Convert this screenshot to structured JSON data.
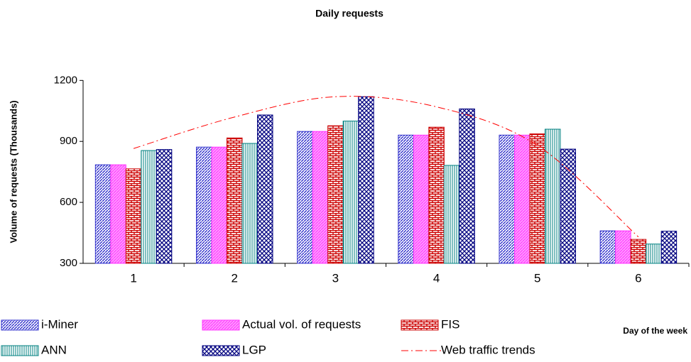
{
  "chart_data": {
    "type": "bar",
    "title": "Daily requests",
    "x_label": "Day of the week",
    "y_label": "Volume of requests (Thousands)",
    "categories": [
      "1",
      "2",
      "3",
      "4",
      "5",
      "6"
    ],
    "series": [
      {
        "name": "i-Miner",
        "color": "#3333cc",
        "values": [
          785,
          872,
          949,
          931,
          931,
          460
        ]
      },
      {
        "name": "Actual vol. of requests",
        "color": "#ff33ff",
        "values": [
          785,
          872,
          949,
          931,
          931,
          460
        ]
      },
      {
        "name": "FIS",
        "color": "#cc0000",
        "values": [
          765,
          917,
          977,
          970,
          937,
          418
        ]
      },
      {
        "name": "ANN",
        "color": "#008080",
        "values": [
          855,
          890,
          1000,
          782,
          960,
          395
        ]
      },
      {
        "name": "LGP",
        "color": "#000080",
        "values": [
          860,
          1030,
          1120,
          1060,
          862,
          458
        ]
      },
      {
        "name": "Web traffic trends",
        "color": "#ff0000",
        "type": "line",
        "values": [
          865,
          1020,
          1120,
          1070,
          880,
          430
        ]
      }
    ],
    "ylim": [
      300,
      1250
    ],
    "yticks": [
      300,
      600,
      900,
      1200
    ],
    "grid": false
  }
}
